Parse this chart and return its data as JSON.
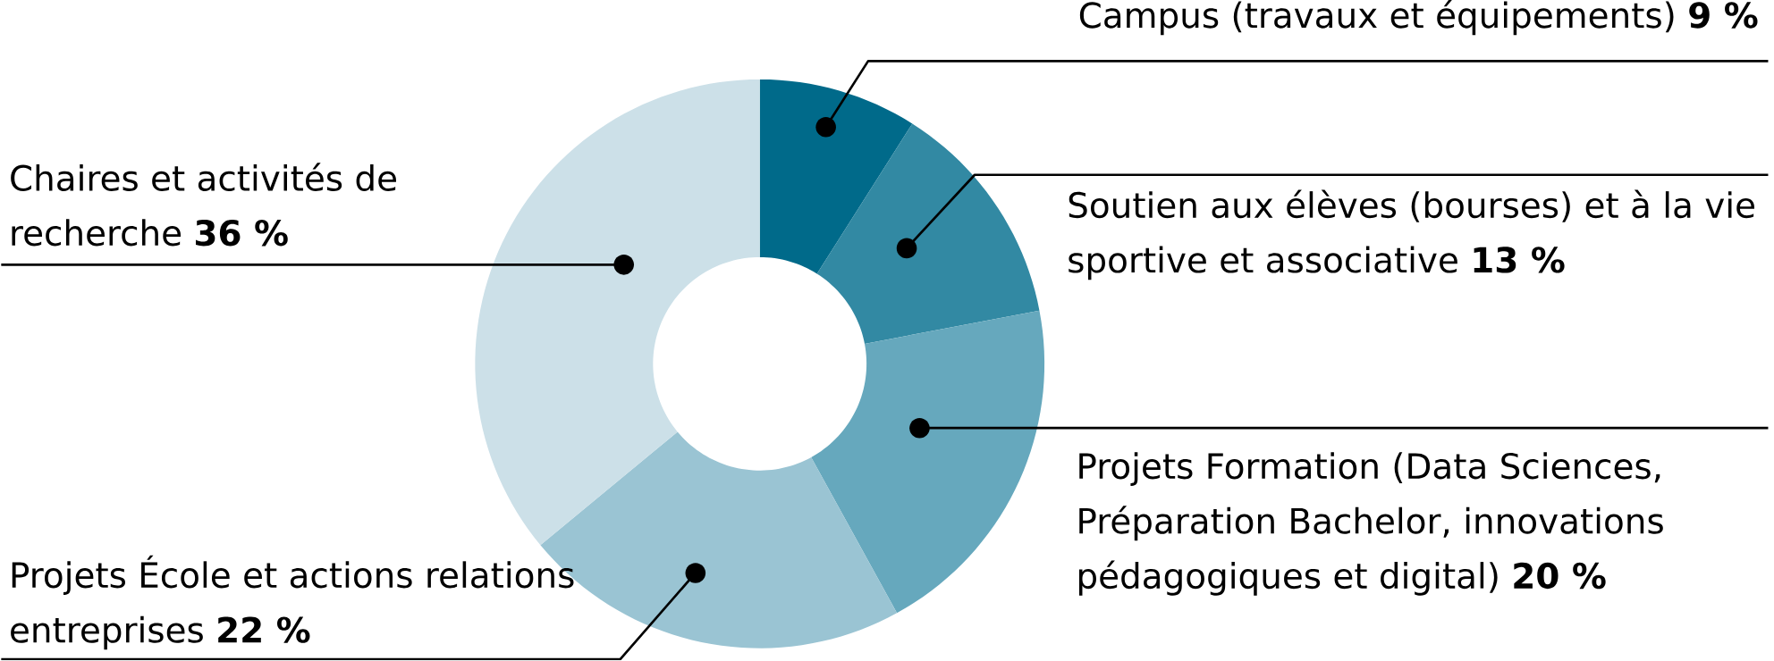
{
  "chart_data": {
    "type": "donut",
    "categories": [
      "Campus (travaux et équipements)",
      "Soutien aux élèves (bourses) et à la vie sportive et associative",
      "Projets Formation (Data Sciences, Préparation Bachelor, innovations pédagogiques et digital)",
      "Projets École et actions relations entreprises",
      "Chaires et activités de recherche"
    ],
    "values": [
      9,
      13,
      20,
      22,
      36
    ],
    "value_labels": [
      "9 %",
      "13 %",
      "20 %",
      "22 %",
      "36 %"
    ],
    "colors": [
      "#006a8a",
      "#3289a3",
      "#66a8bd",
      "#9ac4d3",
      "#cce0e8"
    ]
  }
}
